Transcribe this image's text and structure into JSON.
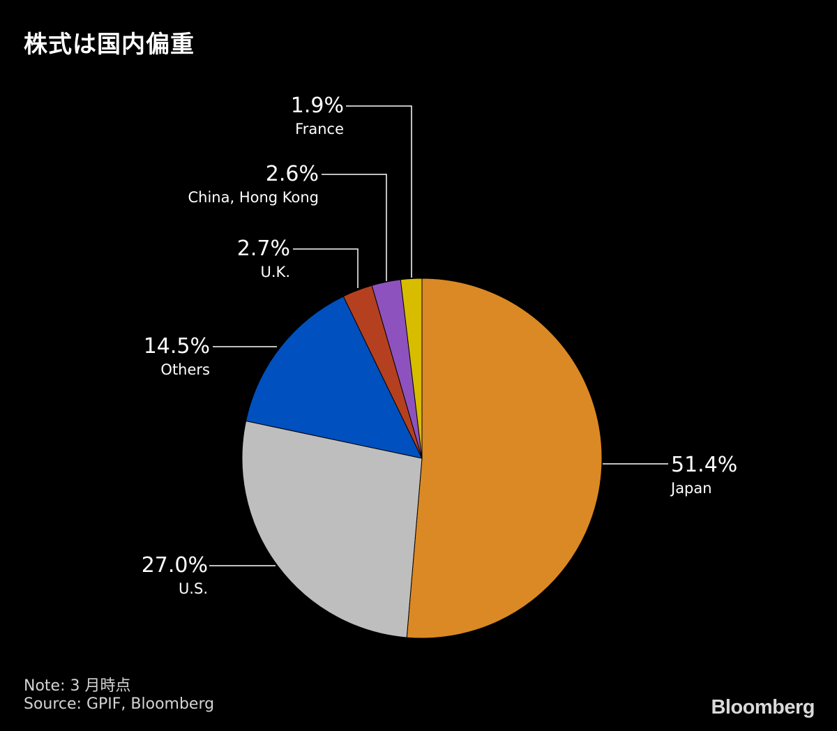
{
  "chart_data": {
    "type": "pie",
    "title": "株式は国内偏重",
    "value_suffix": "%",
    "start_angle_deg": 0,
    "direction": "clockwise",
    "slices": [
      {
        "label": "Japan",
        "value": 51.4,
        "display": "51.4%",
        "color": "#DB8924"
      },
      {
        "label": "U.S.",
        "value": 27.0,
        "display": "27.0%",
        "color": "#BEBEBE"
      },
      {
        "label": "Others",
        "value": 14.5,
        "display": "14.5%",
        "color": "#0050BF"
      },
      {
        "label": "U.K.",
        "value": 2.7,
        "display": "2.7%",
        "color": "#B5401F"
      },
      {
        "label": "China, Hong Kong",
        "value": 2.6,
        "display": "2.6%",
        "color": "#8E52BE"
      },
      {
        "label": "France",
        "value": 1.9,
        "display": "1.9%",
        "color": "#D8BC00"
      }
    ]
  },
  "footer": {
    "note": "Note:  3 月時点",
    "source": "Source: GPIF, Bloomberg",
    "brand": "Bloomberg"
  }
}
